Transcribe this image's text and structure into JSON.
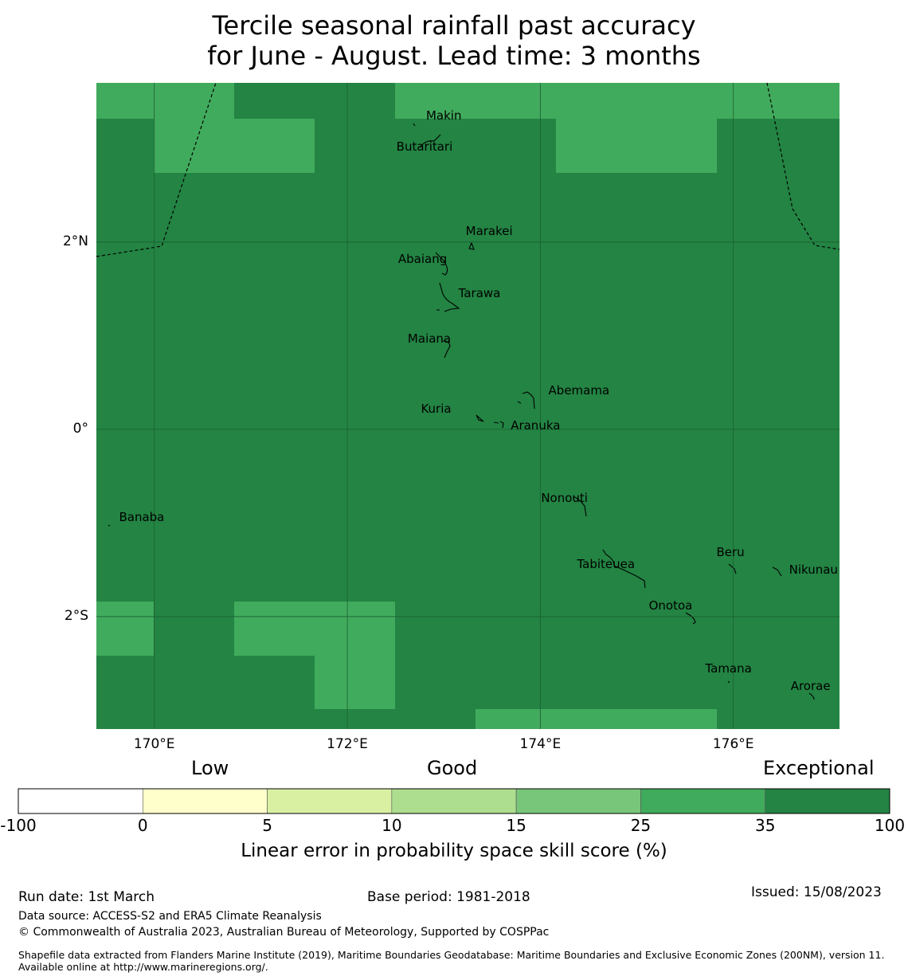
{
  "title": {
    "line1": "Tercile seasonal rainfall past accuracy",
    "line2": "for June - August. Lead time: 3 months"
  },
  "map": {
    "lon_range": [
      169.4,
      177.1
    ],
    "lat_range": [
      -3.2,
      3.7
    ],
    "colors": {
      "band_25_35": "#41ab5d",
      "band_35_100": "#238443",
      "grid": "#1c5e31"
    },
    "lon_ticks": [
      {
        "lon": 170,
        "label": "170°E"
      },
      {
        "lon": 172,
        "label": "172°E"
      },
      {
        "lon": 174,
        "label": "174°E"
      },
      {
        "lon": 176,
        "label": "176°E"
      }
    ],
    "lat_ticks": [
      {
        "lat": 2,
        "label": "2°N"
      },
      {
        "lat": 0,
        "label": "0°"
      },
      {
        "lat": -2,
        "label": "2°S"
      }
    ],
    "islands": [
      {
        "name": "Makin",
        "lon": 173.0,
        "lat": 3.35
      },
      {
        "name": "Butaritari",
        "lon": 172.8,
        "lat": 3.02
      },
      {
        "name": "Marakei",
        "lon": 173.47,
        "lat": 2.12
      },
      {
        "name": "Abaiang",
        "lon": 172.78,
        "lat": 1.82
      },
      {
        "name": "Tarawa",
        "lon": 173.37,
        "lat": 1.45
      },
      {
        "name": "Maiana",
        "lon": 172.85,
        "lat": 0.97
      },
      {
        "name": "Abemama",
        "lon": 174.4,
        "lat": 0.42
      },
      {
        "name": "Kuria",
        "lon": 172.92,
        "lat": 0.22
      },
      {
        "name": "Aranuka",
        "lon": 173.95,
        "lat": 0.04
      },
      {
        "name": "Nonouti",
        "lon": 174.25,
        "lat": -0.73
      },
      {
        "name": "Banaba",
        "lon": 169.87,
        "lat": -0.94
      },
      {
        "name": "Beru",
        "lon": 175.97,
        "lat": -1.31
      },
      {
        "name": "Nikunau",
        "lon": 176.83,
        "lat": -1.5
      },
      {
        "name": "Tabiteuea",
        "lon": 174.68,
        "lat": -1.44
      },
      {
        "name": "Onotoa",
        "lon": 175.35,
        "lat": -1.88
      },
      {
        "name": "Tamana",
        "lon": 175.95,
        "lat": -2.55
      },
      {
        "name": "Arorae",
        "lon": 176.8,
        "lat": -2.74
      }
    ]
  },
  "colorbar": {
    "words": [
      "Low",
      "Good",
      "Exceptional"
    ],
    "boundaries": [
      "-100",
      "0",
      "5",
      "10",
      "15",
      "25",
      "35",
      "100"
    ],
    "colors": [
      "#ffffff",
      "#ffffcc",
      "#d9f0a3",
      "#addd8e",
      "#78c679",
      "#41ab5d",
      "#238443"
    ],
    "title": "Linear error in probability space skill score (%)"
  },
  "footer": {
    "run_date": "Run date: 1st March",
    "base_period": "Base period: 1981-2018",
    "issued": "Issued: 15/08/2023",
    "data_source": "Data source: ACCESS-S2 and ERA5 Climate Reanalysis",
    "copyright": "© Commonwealth of Australia 2023, Australian Bureau of Meteorology, Supported by COSPPac",
    "shapefile": "Shapefile data extracted from Flanders Marine Institute (2019), Maritime Boundaries Geodatabase: Maritime Boundaries and Exclusive Economic Zones (200NM), version 11. Available online at http://www.marineregions.org/."
  }
}
